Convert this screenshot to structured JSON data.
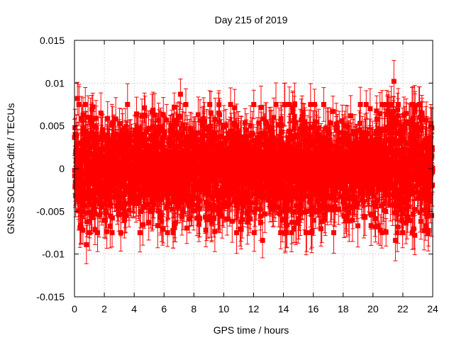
{
  "chart_data": {
    "type": "scatter",
    "title": "Day 215 of 2019",
    "xlabel": "GPS time / hours",
    "ylabel": "GNSS SOLERA-drift / TECUs",
    "xlim": [
      0,
      24
    ],
    "ylim": [
      -0.015,
      0.015
    ],
    "xticks": [
      0,
      2,
      4,
      6,
      8,
      10,
      12,
      14,
      16,
      18,
      20,
      22,
      24
    ],
    "yticks": [
      -0.015,
      -0.01,
      -0.005,
      0,
      0.005,
      0.01,
      0.015
    ],
    "xtick_labels": [
      "0",
      "2",
      "4",
      "6",
      "8",
      "10",
      "12",
      "14",
      "16",
      "18",
      "20",
      "22",
      "24"
    ],
    "ytick_labels": [
      "-0.015",
      "-0.01",
      "-0.005",
      "0",
      "0.005",
      "0.01",
      "0.015"
    ],
    "grid": true,
    "series_color": "#ff0000",
    "series": [
      {
        "name": "SOLERA drift",
        "marker": "square",
        "error_bars": true,
        "error_magnitude_approx": 0.002,
        "points_per_hour": 120,
        "noise_sd": 0.0028,
        "noise_sd_note": "scatter roughly within ±0.006 TECU; wider near 1, 7, 14-16 and 21-22 h",
        "notable_points": [
          {
            "x": 0.2,
            "y": 0.0082
          },
          {
            "x": 0.8,
            "y": -0.0089
          },
          {
            "x": 7.1,
            "y": 0.0087
          },
          {
            "x": 8.8,
            "y": -0.0072
          },
          {
            "x": 12.6,
            "y": -0.0084
          },
          {
            "x": 21.4,
            "y": 0.0102
          },
          {
            "x": 21.5,
            "y": -0.0084
          },
          {
            "x": 22.8,
            "y": -0.0078
          },
          {
            "x": 23.7,
            "y": -0.0076
          }
        ]
      }
    ]
  }
}
